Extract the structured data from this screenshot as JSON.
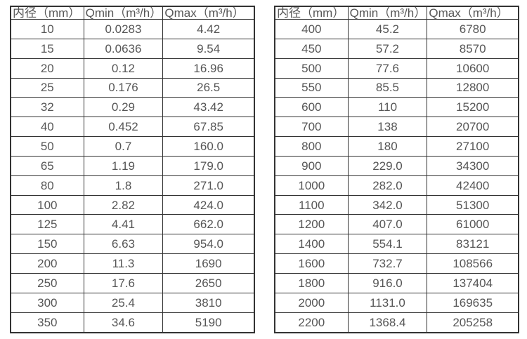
{
  "tables": [
    {
      "name": "small-diameter-flow-table",
      "headers": [
        "内径（mm）",
        "Qmin（m³/h）",
        "Qmax（m³/h）"
      ],
      "rows": [
        [
          "10",
          "0.0283",
          "4.42"
        ],
        [
          "15",
          "0.0636",
          "9.54"
        ],
        [
          "20",
          "0.12",
          "16.96"
        ],
        [
          "25",
          "0.176",
          "26.5"
        ],
        [
          "32",
          "0.29",
          "43.42"
        ],
        [
          "40",
          "0.452",
          "67.85"
        ],
        [
          "50",
          "0.7",
          "160.0"
        ],
        [
          "65",
          "1.19",
          "179.0"
        ],
        [
          "80",
          "1.8",
          "271.0"
        ],
        [
          "100",
          "2.82",
          "424.0"
        ],
        [
          "125",
          "4.41",
          "662.0"
        ],
        [
          "150",
          "6.63",
          "954.0"
        ],
        [
          "200",
          "11.3",
          "1690"
        ],
        [
          "250",
          "17.6",
          "2650"
        ],
        [
          "300",
          "25.4",
          "3810"
        ],
        [
          "350",
          "34.6",
          "5190"
        ]
      ]
    },
    {
      "name": "large-diameter-flow-table",
      "headers": [
        "内径（mm）",
        "Qmin（m³/h）",
        "Qmax（m³/h）"
      ],
      "rows": [
        [
          "400",
          "45.2",
          "6780"
        ],
        [
          "450",
          "57.2",
          "8570"
        ],
        [
          "500",
          "77.6",
          "10600"
        ],
        [
          "550",
          "85.5",
          "12800"
        ],
        [
          "600",
          "110",
          "15200"
        ],
        [
          "700",
          "138",
          "20700"
        ],
        [
          "800",
          "180",
          "27100"
        ],
        [
          "900",
          "229.0",
          "34300"
        ],
        [
          "1000",
          "282.0",
          "42400"
        ],
        [
          "1100",
          "342.0",
          "51300"
        ],
        [
          "1200",
          "407.0",
          "61000"
        ],
        [
          "1400",
          "554.1",
          "83121"
        ],
        [
          "1600",
          "732.7",
          "108566"
        ],
        [
          "1800",
          "916.0",
          "137404"
        ],
        [
          "2000",
          "1131.0",
          "169635"
        ],
        [
          "2200",
          "1368.4",
          "205258"
        ]
      ]
    }
  ],
  "colors": {
    "border": "#333333",
    "text": "#565656",
    "background": "#ffffff"
  }
}
